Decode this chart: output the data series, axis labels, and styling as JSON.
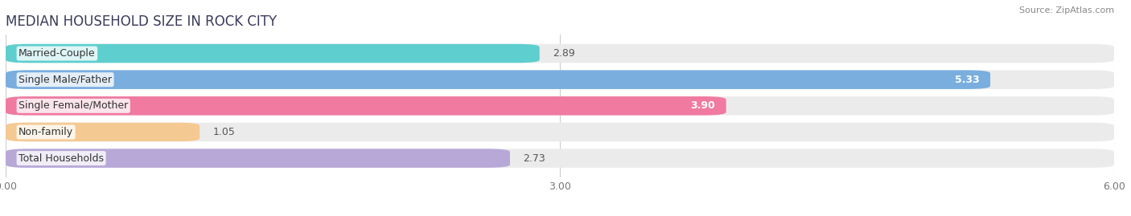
{
  "title": "MEDIAN HOUSEHOLD SIZE IN ROCK CITY",
  "source": "Source: ZipAtlas.com",
  "categories": [
    "Married-Couple",
    "Single Male/Father",
    "Single Female/Mother",
    "Non-family",
    "Total Households"
  ],
  "values": [
    2.89,
    5.33,
    3.9,
    1.05,
    2.73
  ],
  "bar_colors": [
    "#5ECECE",
    "#79AEDE",
    "#F07AA0",
    "#F5C992",
    "#B8A8D8"
  ],
  "track_color": "#EBEBEB",
  "xlim": [
    0,
    6.0
  ],
  "xticks": [
    0.0,
    3.0,
    6.0
  ],
  "xtick_labels": [
    "0.00",
    "3.00",
    "6.00"
  ],
  "title_fontsize": 12,
  "label_fontsize": 9,
  "value_fontsize": 9,
  "background_color": "#FFFFFF",
  "bar_height": 0.72,
  "value_inside": [
    false,
    true,
    true,
    false,
    false
  ],
  "value_labels": [
    "2.89",
    "5.33",
    "3.90",
    "1.05",
    "2.73"
  ]
}
